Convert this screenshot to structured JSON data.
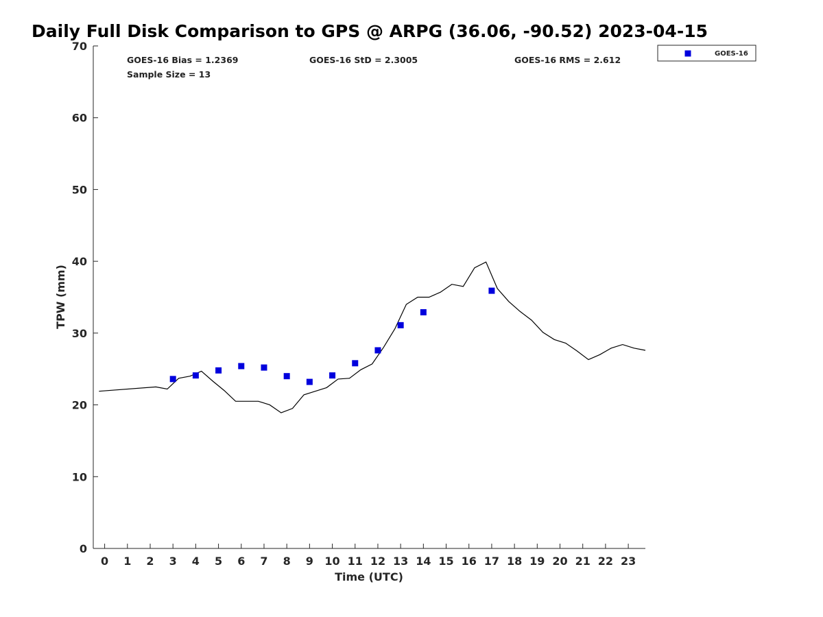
{
  "chart_data": {
    "type": "scatter",
    "title": "Daily Full Disk Comparison to GPS @ ARPG (36.06, -90.52) 2023-04-15",
    "xlabel": "Time (UTC)",
    "ylabel": "TPW (mm)",
    "xlim": [
      -0.5,
      23.75
    ],
    "ylim": [
      0,
      70
    ],
    "x_ticks": [
      0,
      1,
      2,
      3,
      4,
      5,
      6,
      7,
      8,
      9,
      10,
      11,
      12,
      13,
      14,
      15,
      16,
      17,
      18,
      19,
      20,
      21,
      22,
      23
    ],
    "y_ticks": [
      0,
      10,
      20,
      30,
      40,
      50,
      60,
      70
    ],
    "grid": false,
    "legend_position": "top-right, outside plot",
    "stats": {
      "bias": "GOES-16 Bias = 1.2369",
      "std": "GOES-16 StD = 2.3005",
      "rms": "GOES-16 RMS = 2.612",
      "sample_size": "Sample Size = 13"
    },
    "series": [
      {
        "name": "GOES-16",
        "kind": "scatter",
        "marker": "square",
        "color": "#0000dd",
        "x": [
          3,
          4,
          5,
          6,
          7,
          8,
          9,
          10,
          11,
          12,
          13,
          14,
          17
        ],
        "y": [
          23.6,
          24.1,
          24.8,
          25.4,
          25.2,
          24.0,
          23.2,
          24.1,
          25.8,
          27.6,
          31.1,
          32.9,
          35.9
        ]
      },
      {
        "kind": "line",
        "color": "#000000",
        "x": [
          -0.25,
          2.25,
          2.75,
          3.25,
          3.75,
          4.25,
          4.75,
          5.25,
          5.75,
          6.25,
          6.75,
          7.25,
          7.75,
          8.25,
          8.75,
          9.25,
          9.75,
          10.25,
          10.75,
          11.25,
          11.75,
          12.25,
          12.75,
          13.25,
          13.75,
          14.25,
          14.75,
          15.25,
          15.75,
          16.25,
          16.75,
          17.25,
          17.75,
          18.25,
          18.75,
          19.25,
          19.75,
          20.25,
          20.75,
          21.25,
          21.75,
          22.25,
          22.75,
          23.25,
          23.75
        ],
        "y": [
          21.9,
          22.5,
          22.2,
          23.7,
          24.0,
          24.7,
          23.3,
          22.0,
          20.5,
          20.5,
          20.5,
          20.0,
          18.9,
          19.5,
          21.4,
          21.9,
          22.4,
          23.6,
          23.7,
          24.9,
          25.7,
          28.0,
          30.6,
          34.0,
          35.0,
          35.0,
          35.7,
          36.8,
          36.5,
          39.1,
          39.9,
          36.2,
          34.4,
          33.0,
          31.8,
          30.1,
          29.1,
          28.6,
          27.5,
          26.3,
          27.0,
          27.9,
          28.4,
          27.9,
          27.6
        ]
      }
    ]
  }
}
